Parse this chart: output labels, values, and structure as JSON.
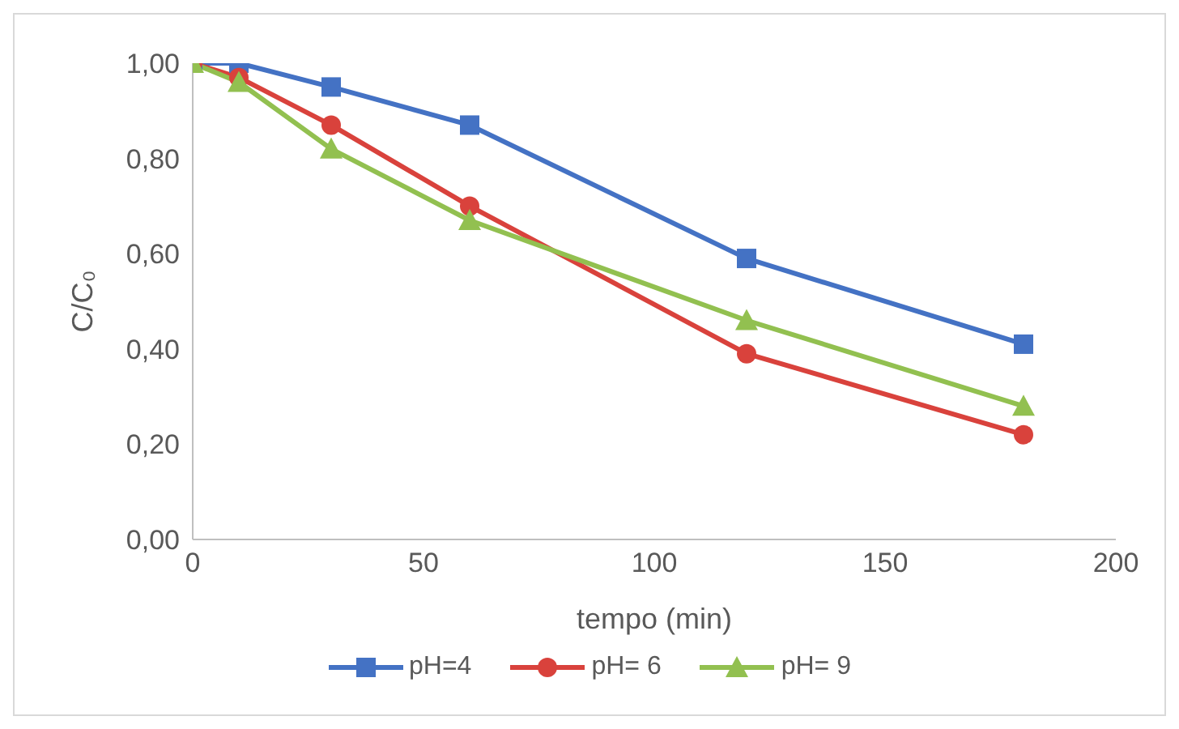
{
  "chart_data": {
    "type": "line",
    "xlabel": "tempo (min)",
    "ylabel": "C/C₀",
    "x": [
      0,
      10,
      30,
      60,
      120,
      180
    ],
    "series": [
      {
        "name": "pH=4",
        "color": "#4472c4",
        "marker": "square",
        "values": [
          1.0,
          1.0,
          0.95,
          0.87,
          0.59,
          0.41
        ]
      },
      {
        "name": "pH= 6",
        "color": "#d9423c",
        "marker": "circle",
        "values": [
          1.0,
          0.97,
          0.87,
          0.7,
          0.39,
          0.22
        ]
      },
      {
        "name": "pH= 9",
        "color": "#92c050",
        "marker": "triangle",
        "values": [
          1.0,
          0.96,
          0.82,
          0.67,
          0.46,
          0.28
        ]
      }
    ],
    "xlim": [
      0,
      200
    ],
    "xticks": [
      0,
      50,
      100,
      150,
      200
    ],
    "ylim": [
      0,
      1
    ],
    "yticks": [
      {
        "value": 0,
        "label": "0,00"
      },
      {
        "value": 0.2,
        "label": "0,20"
      },
      {
        "value": 0.4,
        "label": "0,40"
      },
      {
        "value": 0.6,
        "label": "0,60"
      },
      {
        "value": 0.8,
        "label": "0,80"
      },
      {
        "value": 1,
        "label": "1,00"
      }
    ],
    "grid": false,
    "legend": "bottom",
    "line_style": "solid"
  }
}
